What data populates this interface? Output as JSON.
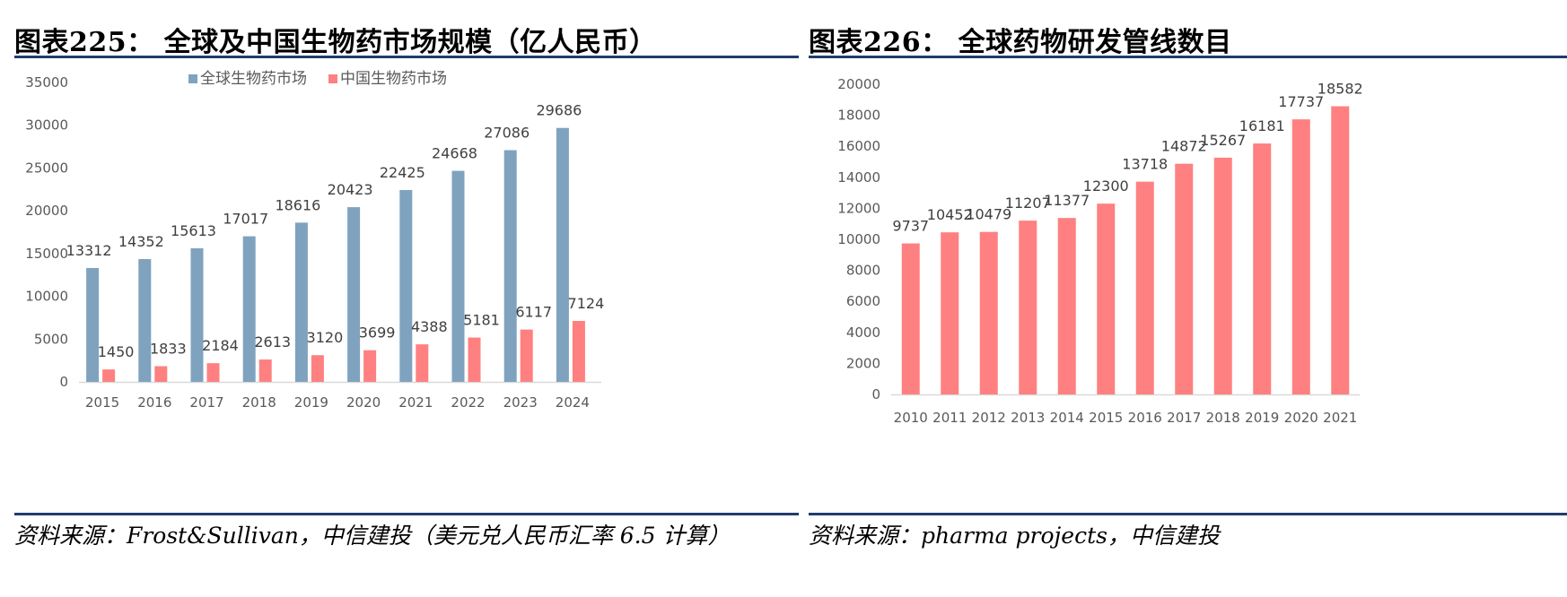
{
  "left": {
    "title": "图表225：  全球及中国生物药市场规模（亿人民币）",
    "source": "资料来源：Frost&Sullivan，中信建投（美元兑人民币汇率 6.5 计算）",
    "colors": {
      "global": "#7fa3bf",
      "china": "#ff8080"
    }
  },
  "right": {
    "title": "图表226：  全球药物研发管线数目",
    "source": "资料来源：pharma projects，中信建投",
    "colors": {
      "bar": "#ff8080"
    }
  },
  "chart_data": [
    {
      "type": "bar",
      "title": "全球及中国生物药市场规模（亿人民币）",
      "categories": [
        "2015",
        "2016",
        "2017",
        "2018",
        "2019",
        "2020",
        "2021",
        "2022",
        "2023",
        "2024"
      ],
      "series": [
        {
          "name": "全球生物药市场",
          "values": [
            13312,
            14352,
            15613,
            17017,
            18616,
            20423,
            22425,
            24668,
            27086,
            29686
          ]
        },
        {
          "name": "中国生物药市场",
          "values": [
            1450,
            1833,
            2184,
            2613,
            3120,
            3699,
            4388,
            5181,
            6117,
            7124
          ]
        }
      ],
      "yticks": [
        0,
        5000,
        10000,
        15000,
        20000,
        25000,
        30000,
        35000
      ],
      "ylim": [
        0,
        35000
      ],
      "xlabel": "",
      "ylabel": "",
      "legend": "top"
    },
    {
      "type": "bar",
      "title": "全球药物研发管线数目",
      "categories": [
        "2010",
        "2011",
        "2012",
        "2013",
        "2014",
        "2015",
        "2016",
        "2017",
        "2018",
        "2019",
        "2020",
        "2021"
      ],
      "values": [
        9737,
        10452,
        10479,
        11207,
        11377,
        12300,
        13718,
        14872,
        15267,
        16181,
        17737,
        18582
      ],
      "yticks": [
        0,
        2000,
        4000,
        6000,
        8000,
        10000,
        12000,
        14000,
        16000,
        18000,
        20000
      ],
      "ylim": [
        0,
        20000
      ],
      "xlabel": "",
      "ylabel": ""
    }
  ]
}
